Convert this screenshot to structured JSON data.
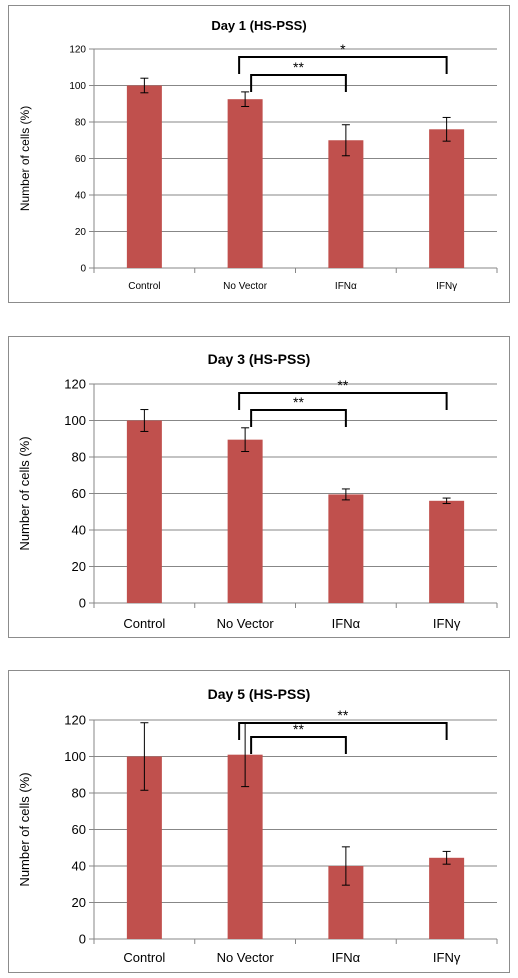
{
  "chart_data": [
    {
      "type": "bar",
      "title": "Day 1 (HS-PSS)",
      "xlabel": "",
      "ylabel": "Number of cells (%)",
      "ylim": [
        0,
        120
      ],
      "yticks": [
        0,
        20,
        40,
        60,
        80,
        100,
        120
      ],
      "grid": true,
      "categories": [
        "Control",
        "No Vector",
        "IFNα",
        "IFNγ"
      ],
      "values": [
        100,
        92.5,
        70,
        76
      ],
      "errors": [
        4,
        4,
        8.5,
        6.5
      ],
      "bar_color": "#c0504d",
      "significance": [
        {
          "from": "No Vector",
          "to": "IFNα",
          "label": "**"
        },
        {
          "from": "No Vector",
          "to": "IFNγ",
          "label": "*"
        }
      ]
    },
    {
      "type": "bar",
      "title": "Day 3 (HS-PSS)",
      "xlabel": "",
      "ylabel": "Number of cells (%)",
      "ylim": [
        0,
        120
      ],
      "yticks": [
        0,
        20,
        40,
        60,
        80,
        100,
        120
      ],
      "grid": true,
      "categories": [
        "Control",
        "No Vector",
        "IFNα",
        "IFNγ"
      ],
      "values": [
        100,
        89.5,
        59.5,
        56
      ],
      "errors": [
        6,
        6.5,
        3,
        1.5
      ],
      "bar_color": "#c0504d",
      "significance": [
        {
          "from": "No Vector",
          "to": "IFNα",
          "label": "**"
        },
        {
          "from": "No Vector",
          "to": "IFNγ",
          "label": "**"
        }
      ]
    },
    {
      "type": "bar",
      "title": "Day 5 (HS-PSS)",
      "xlabel": "",
      "ylabel": "Number of cells (%)",
      "ylim": [
        0,
        120
      ],
      "yticks": [
        0,
        20,
        40,
        60,
        80,
        100,
        120
      ],
      "grid": true,
      "categories": [
        "Control",
        "No Vector",
        "IFNα",
        "IFNγ"
      ],
      "values": [
        100,
        101,
        40,
        44.5
      ],
      "errors": [
        18.5,
        17.5,
        10.5,
        3.5
      ],
      "bar_color": "#c0504d",
      "significance": [
        {
          "from": "No Vector",
          "to": "IFNα",
          "label": "**"
        },
        {
          "from": "No Vector",
          "to": "IFNγ",
          "label": "**"
        }
      ]
    }
  ]
}
